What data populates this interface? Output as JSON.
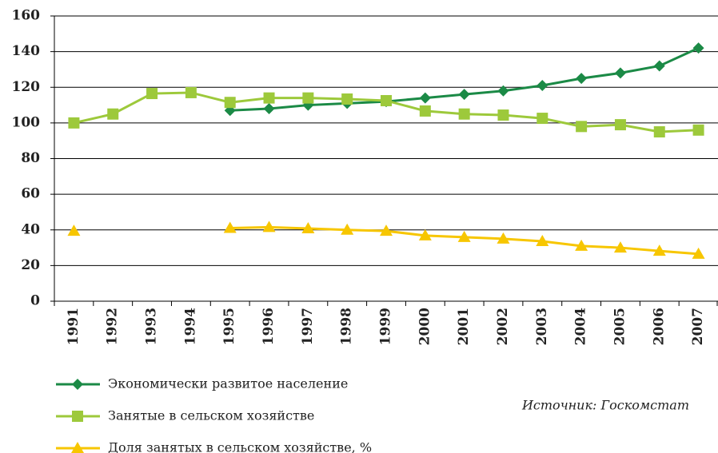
{
  "chart_data": {
    "type": "line",
    "categories": [
      "1991",
      "1992",
      "1993",
      "1994",
      "1995",
      "1996",
      "1997",
      "1998",
      "1999",
      "2000",
      "2001",
      "2002",
      "2003",
      "2004",
      "2005",
      "2006",
      "2007"
    ],
    "series": [
      {
        "name": "Экономически развитое население",
        "color": "#1b8a46",
        "marker": "diamond",
        "values": [
          null,
          null,
          null,
          null,
          107,
          108,
          110,
          111,
          112,
          114,
          116,
          118,
          121,
          125,
          128,
          132,
          142
        ]
      },
      {
        "name": "Занятые в сельском хозяйстве",
        "color": "#9dc93b",
        "marker": "square",
        "values": [
          100,
          105,
          116.5,
          117,
          111.5,
          114,
          114,
          113.4,
          112.5,
          106.7,
          105,
          104.4,
          102.6,
          98,
          99,
          95,
          96
        ]
      },
      {
        "name": "Доля занятых в сельском хозяйстве, %",
        "color": "#f7c600",
        "marker": "triangle",
        "values": [
          39.4,
          null,
          null,
          null,
          41,
          41.5,
          40.8,
          40,
          39.4,
          36.8,
          35.9,
          35,
          33.6,
          31,
          30,
          28.2,
          26.5
        ]
      }
    ],
    "ylim": [
      0,
      160
    ],
    "yticks": [
      0,
      20,
      40,
      60,
      80,
      100,
      120,
      140,
      160
    ],
    "grid": true,
    "legend": "bottom-left",
    "source": "Источник: Госкомстат"
  }
}
